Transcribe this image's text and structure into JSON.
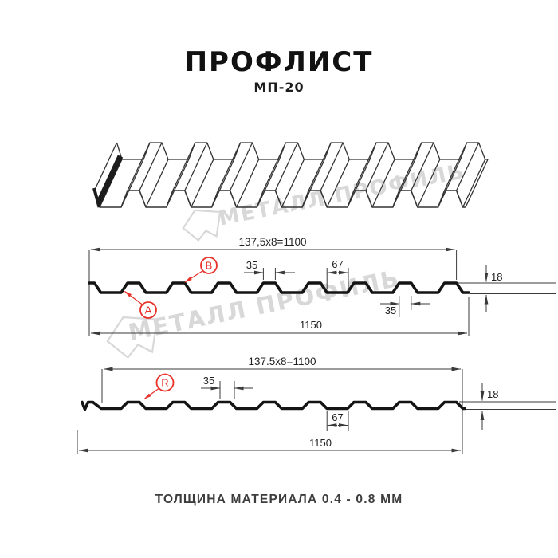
{
  "page": {
    "title": "ПРОФЛИСТ",
    "subtitle": "МП-20",
    "footer": "ТОЛЩИНА МАТЕРИАЛА 0.4 - 0.8 ММ"
  },
  "watermark": {
    "brand": "МЕТАЛЛ ПРОФИЛЬ"
  },
  "colors": {
    "accent_red": "#e8322a",
    "drawing_line": "#3a3a3a",
    "profile_line": "#141414",
    "watermark_gray": "#d8d8d8"
  },
  "diagram_top": {
    "module_width": "137,5x8=1100",
    "overall_width": "1150",
    "rib_top_width": "35",
    "flute_width": "67",
    "profile_height": "18",
    "rib_base_width": "35",
    "marker_a": "A",
    "marker_b": "B"
  },
  "diagram_bottom": {
    "module_width": "137.5x8=1100",
    "overall_width": "1150",
    "rib_top_width": "35",
    "flute_width": "67",
    "profile_height": "18",
    "marker_r": "R"
  }
}
